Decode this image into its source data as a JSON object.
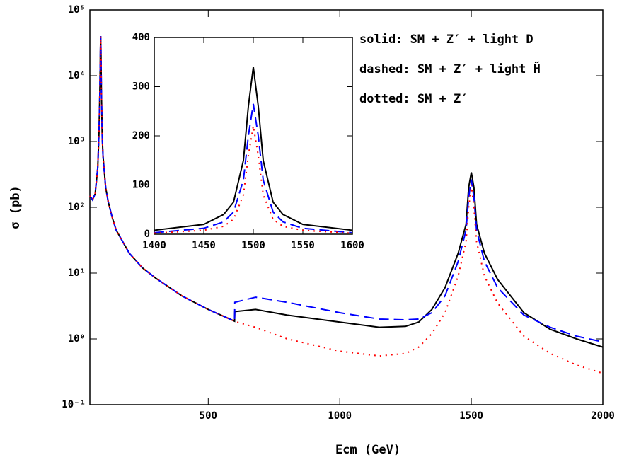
{
  "chart_data": [
    {
      "type": "line",
      "x_label": "Ecm (GeV)",
      "y_label": "σ (pb)",
      "ylog": true,
      "xlim": [
        50,
        2000
      ],
      "xticks": [
        500,
        1000,
        1500,
        2000
      ],
      "ylim": [
        0.1,
        100000
      ],
      "yticks": [
        {
          "value": 0.1,
          "label": "10⁻¹"
        },
        {
          "value": 1,
          "label": "10⁰"
        },
        {
          "value": 10,
          "label": "10¹"
        },
        {
          "value": 100,
          "label": "10²"
        },
        {
          "value": 1000,
          "label": "10³"
        },
        {
          "value": 10000,
          "label": "10⁴"
        },
        {
          "value": 100000,
          "label": "10⁵"
        }
      ],
      "annotations": [
        "solid: SM + Z′ + light D",
        "dashed: SM + Z′ + light H̃",
        "dotted: SM + Z′"
      ],
      "x": [
        50,
        60,
        70,
        80,
        85,
        88,
        90,
        91,
        92,
        94,
        97,
        100,
        110,
        120,
        135,
        150,
        200,
        250,
        300,
        400,
        500,
        600,
        601,
        680,
        800,
        1000,
        1150,
        1250,
        1300,
        1350,
        1400,
        1450,
        1480,
        1490,
        1500,
        1510,
        1520,
        1550,
        1600,
        1700,
        1800,
        1900,
        2000
      ],
      "series": [
        {
          "color": "#000000",
          "dash": "solid",
          "values": [
            150,
            130,
            160,
            400,
            1500,
            6000,
            25000,
            40000,
            25000,
            5000,
            1200,
            600,
            200,
            120,
            70,
            45,
            20,
            12,
            8.4,
            4.5,
            2.8,
            1.86,
            2.6,
            2.8,
            2.3,
            1.8,
            1.5,
            1.55,
            1.8,
            2.8,
            6,
            20,
            55,
            200,
            340,
            200,
            55,
            20,
            8,
            2.5,
            1.4,
            1.0,
            0.75
          ]
        },
        {
          "color": "#0000ff",
          "dash": "dashed",
          "values": [
            150,
            130,
            160,
            400,
            1500,
            6000,
            25000,
            40000,
            25000,
            5000,
            1200,
            600,
            200,
            120,
            70,
            45,
            20,
            12,
            8.4,
            4.5,
            2.8,
            1.86,
            3.6,
            4.3,
            3.6,
            2.5,
            2.0,
            1.95,
            2.0,
            2.5,
            4.5,
            15,
            45,
            140,
            265,
            140,
            45,
            15,
            6,
            2.3,
            1.5,
            1.1,
            0.9
          ]
        },
        {
          "color": "#ff0000",
          "dash": "dotted",
          "values": [
            150,
            130,
            160,
            400,
            1500,
            6000,
            25000,
            40000,
            25000,
            5000,
            1200,
            600,
            200,
            120,
            70,
            45,
            20,
            12,
            8.4,
            4.5,
            2.8,
            1.86,
            1.84,
            1.5,
            1.0,
            0.65,
            0.55,
            0.6,
            0.75,
            1.2,
            2.5,
            9,
            30,
            100,
            220,
            100,
            30,
            9,
            3.5,
            1.1,
            0.6,
            0.4,
            0.3
          ]
        }
      ]
    },
    {
      "type": "line",
      "ylog": false,
      "xlim": [
        1400,
        1600
      ],
      "xticks": [
        1400,
        1450,
        1500,
        1550,
        1600
      ],
      "ylim": [
        0,
        400
      ],
      "yticks": [
        0,
        100,
        200,
        300,
        400
      ],
      "x": [
        1400,
        1450,
        1470,
        1480,
        1490,
        1495,
        1500,
        1505,
        1510,
        1520,
        1530,
        1550,
        1600
      ],
      "series": [
        {
          "color": "#000000",
          "dash": "solid",
          "values": [
            8,
            20,
            40,
            65,
            150,
            260,
            340,
            260,
            150,
            65,
            40,
            20,
            8
          ]
        },
        {
          "color": "#0000ff",
          "dash": "dashed",
          "values": [
            3,
            12,
            25,
            45,
            110,
            200,
            265,
            200,
            110,
            45,
            25,
            12,
            3
          ]
        },
        {
          "color": "#ff0000",
          "dash": "dotted",
          "values": [
            2,
            8,
            16,
            30,
            80,
            160,
            220,
            160,
            80,
            30,
            16,
            8,
            2
          ]
        }
      ]
    }
  ]
}
